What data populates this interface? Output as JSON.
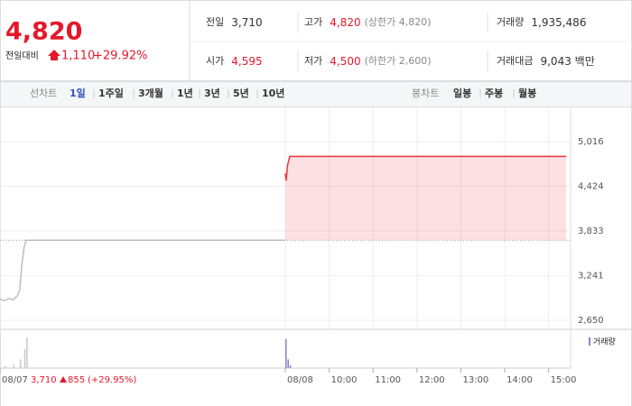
{
  "quote": {
    "price": "4,820",
    "change_label": "전일대비",
    "change": "1,110",
    "rate": "+29.92%"
  },
  "stats": [
    [
      {
        "label": "전일",
        "value": "3,710"
      },
      {
        "label": "고가",
        "value": "4,820",
        "note": "(상한가 4,820)"
      },
      {
        "label": "거래량",
        "value": "1,935,486"
      }
    ],
    [
      {
        "label": "시가",
        "value": "4,595"
      },
      {
        "label": "저가",
        "value": "4,500",
        "note": "(하한가 2,600)"
      },
      {
        "label": "거래대금",
        "value": "9,043 백만"
      }
    ]
  ],
  "tabs": {
    "line_label": "선차트",
    "line_periods": [
      "1일",
      "1주일",
      "3개월",
      "1년",
      "3년",
      "5년",
      "10년"
    ],
    "candle_label": "봉차트",
    "candle_periods": [
      "일봉",
      "주봉",
      "월봉"
    ]
  },
  "chart_data": {
    "type": "line",
    "xlim": [
      0,
      13
    ],
    "ylim": [
      2531,
      5398
    ],
    "yticks": [
      {
        "value": 5016,
        "label": "5,016"
      },
      {
        "value": 4424,
        "label": "4,424"
      },
      {
        "value": 3833,
        "label": "3,833"
      },
      {
        "value": 3241,
        "label": "3,241"
      },
      {
        "value": 2650,
        "label": "2,650"
      }
    ],
    "xticks": [
      {
        "value": 0,
        "label": "08/07"
      },
      {
        "value": 6.5,
        "label": "08/08"
      },
      {
        "value": 7.5,
        "label": "10:00"
      },
      {
        "value": 8.5,
        "label": "11:00"
      },
      {
        "value": 9.5,
        "label": "12:00"
      },
      {
        "value": 10.5,
        "label": "13:00"
      },
      {
        "value": 11.5,
        "label": "14:00"
      },
      {
        "value": 12.5,
        "label": "15:00"
      }
    ],
    "reference": 3710,
    "series": [
      {
        "color": "#bdbdbd",
        "x": [
          0,
          0.1,
          0.2,
          0.3,
          0.4,
          0.45,
          0.5,
          0.55,
          0.6,
          6.5
        ],
        "values": [
          2930,
          2910,
          2940,
          2920,
          2980,
          3050,
          3400,
          3620,
          3710,
          3710
        ]
      },
      {
        "color": "#f0333a",
        "x": [
          6.5,
          6.52,
          6.55,
          6.6,
          12.9
        ],
        "values": [
          4595,
          4500,
          4700,
          4820,
          4820
        ]
      }
    ],
    "volume": {
      "name": "거래량",
      "color": "#8d7fc9",
      "day_color": "#c8c8c8",
      "x": [
        0.1,
        0.3,
        0.45,
        0.55,
        0.6,
        6.5,
        6.55,
        6.6
      ],
      "values": [
        30000,
        45000,
        120000,
        260000,
        420000,
        400000,
        120000,
        40000
      ]
    },
    "note": {
      "date": "08/07",
      "price": "3,710",
      "change": "855",
      "rate": "(+29.95%)"
    }
  }
}
